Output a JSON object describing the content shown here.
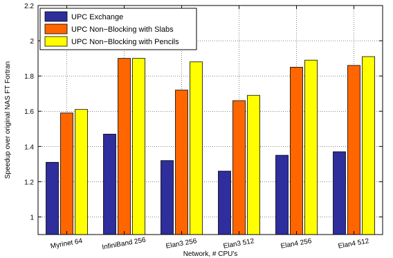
{
  "chart_data": {
    "type": "bar",
    "title": "",
    "xlabel": "Network, # CPU's",
    "ylabel": "Speedup over original NAS FT Fortran",
    "categories": [
      "Myrinet 64",
      "InfiniBand 256",
      "Elan3 256",
      "Elan3 512",
      "Elan4 256",
      "Elan4 512"
    ],
    "ylim": [
      0.9,
      2.2
    ],
    "yticks": [
      "1",
      "1.2",
      "1.4",
      "1.6",
      "1.8",
      "2",
      "2.2"
    ],
    "ytick_values": [
      1,
      1.2,
      1.4,
      1.6,
      1.8,
      2.0,
      2.2
    ],
    "grid": true,
    "legend_position": "top-left",
    "series": [
      {
        "name": "UPC Exchange",
        "color": "#2e2e9c",
        "values": [
          1.31,
          1.47,
          1.32,
          1.26,
          1.35,
          1.37
        ]
      },
      {
        "name": "UPC Non−Blocking with Slabs",
        "color": "#ff6600",
        "values": [
          1.59,
          1.9,
          1.72,
          1.66,
          1.85,
          1.86
        ]
      },
      {
        "name": "UPC Non−Blocking with Pencils",
        "color": "#ffff00",
        "values": [
          1.61,
          1.9,
          1.88,
          1.69,
          1.89,
          1.91
        ]
      }
    ]
  }
}
